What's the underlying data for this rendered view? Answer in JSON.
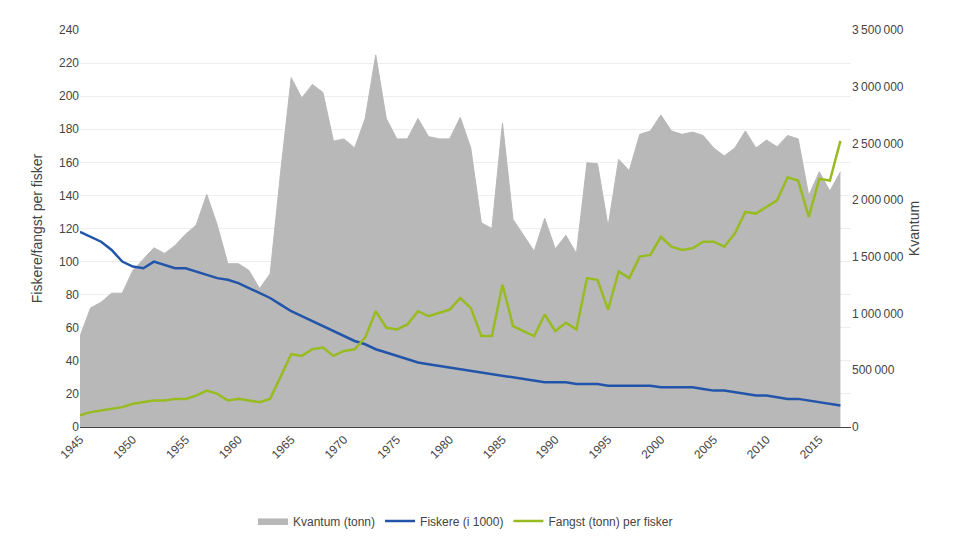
{
  "chart_data": {
    "type": "line",
    "x": [
      1945,
      1946,
      1947,
      1948,
      1949,
      1950,
      1951,
      1952,
      1953,
      1954,
      1955,
      1956,
      1957,
      1958,
      1959,
      1960,
      1961,
      1962,
      1963,
      1964,
      1965,
      1966,
      1967,
      1968,
      1969,
      1970,
      1971,
      1972,
      1973,
      1974,
      1975,
      1976,
      1977,
      1978,
      1979,
      1980,
      1981,
      1982,
      1983,
      1984,
      1985,
      1986,
      1987,
      1988,
      1989,
      1990,
      1991,
      1992,
      1993,
      1994,
      1995,
      1996,
      1997,
      1998,
      1999,
      2000,
      2001,
      2002,
      2003,
      2004,
      2005,
      2006,
      2007,
      2008,
      2009,
      2010,
      2011,
      2012,
      2013,
      2014,
      2015,
      2016,
      2017
    ],
    "series": [
      {
        "name": "Kvantum (tonn)",
        "type": "area",
        "axis": "y2",
        "color": "#b8b8b8",
        "values": [
          800000,
          1050000,
          1100000,
          1180000,
          1180000,
          1380000,
          1480000,
          1580000,
          1530000,
          1600000,
          1700000,
          1780000,
          2050000,
          1780000,
          1440000,
          1440000,
          1380000,
          1220000,
          1350000,
          2250000,
          3080000,
          2900000,
          3020000,
          2950000,
          2520000,
          2540000,
          2460000,
          2720000,
          3280000,
          2720000,
          2540000,
          2540000,
          2720000,
          2560000,
          2540000,
          2540000,
          2730000,
          2460000,
          1800000,
          1750000,
          2680000,
          1830000,
          1690000,
          1550000,
          1840000,
          1570000,
          1690000,
          1530000,
          2330000,
          2320000,
          1770000,
          2360000,
          2260000,
          2580000,
          2610000,
          2750000,
          2610000,
          2580000,
          2600000,
          2570000,
          2460000,
          2390000,
          2460000,
          2610000,
          2460000,
          2530000,
          2470000,
          2570000,
          2540000,
          2040000,
          2250000,
          2080000,
          2250000
        ]
      },
      {
        "name": "Fiskere (i 1000)",
        "type": "line",
        "color": "#2255aa",
        "values": [
          118,
          115,
          112,
          107,
          100,
          97,
          96,
          100,
          98,
          96,
          96,
          94,
          92,
          90,
          89,
          87,
          84,
          81,
          78,
          74,
          70,
          67,
          64,
          61,
          58,
          55,
          52,
          50,
          47,
          45,
          43,
          41,
          39,
          38,
          37,
          36,
          35,
          34,
          33,
          32,
          31,
          30,
          29,
          28,
          27,
          27,
          27,
          26,
          26,
          26,
          25,
          25,
          25,
          25,
          25,
          24,
          24,
          24,
          24,
          23,
          22,
          22,
          21,
          20,
          19,
          19,
          18,
          17,
          17,
          16,
          15,
          14,
          13
        ]
      },
      {
        "name": "Fangst (tonn) per fisker",
        "type": "line",
        "color": "#99bb22",
        "values": [
          7,
          9,
          10,
          11,
          12,
          14,
          15,
          16,
          16,
          17,
          17,
          19,
          22,
          20,
          16,
          17,
          16,
          15,
          17,
          30,
          44,
          43,
          47,
          48,
          43,
          46,
          47,
          54,
          70,
          60,
          59,
          62,
          70,
          67,
          69,
          71,
          78,
          72,
          55,
          55,
          86,
          61,
          58,
          55,
          68,
          58,
          63,
          59,
          90,
          89,
          71,
          94,
          90,
          103,
          104,
          115,
          109,
          107,
          108,
          112,
          112,
          109,
          117,
          130,
          129,
          133,
          137,
          151,
          149,
          127,
          150,
          149,
          173
        ]
      }
    ],
    "ylabel": "Fiskere/fangst per fisker",
    "y2label": "Kvantum",
    "xlim": [
      1945,
      2018
    ],
    "xticks": [
      1945,
      1950,
      1955,
      1960,
      1965,
      1970,
      1975,
      1980,
      1985,
      1990,
      1995,
      2000,
      2005,
      2010,
      2015
    ],
    "ylim": [
      0,
      240
    ],
    "yticks": [
      0,
      20,
      40,
      60,
      80,
      100,
      120,
      140,
      160,
      180,
      200,
      220,
      240
    ],
    "y2lim": [
      0,
      3500000
    ],
    "y2ticks": [
      0,
      {
        "value": 500000,
        "label": "500 000"
      },
      {
        "value": 1000000,
        "label": "1 000 000"
      },
      {
        "value": 1500000,
        "label": "1 500 000"
      },
      {
        "value": 2000000,
        "label": "2 000 000"
      },
      {
        "value": 2500000,
        "label": "2 500 000"
      },
      {
        "value": 3000000,
        "label": "3 000 000"
      },
      {
        "value": 3500000,
        "label": "3 500 000"
      }
    ],
    "grid": true,
    "legend": "bottom"
  }
}
